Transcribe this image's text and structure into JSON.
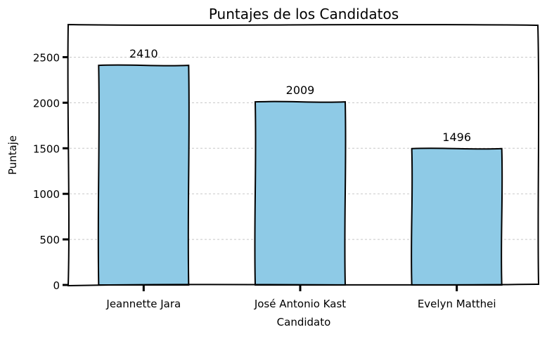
{
  "chart_data": {
    "type": "bar",
    "title": "Puntajes de los Candidatos",
    "xlabel": "Candidato",
    "ylabel": "Puntaje",
    "categories": [
      "Jeannette Jara",
      "José Antonio Kast",
      "Evelyn Matthei"
    ],
    "values": [
      2410,
      2009,
      1496
    ],
    "data_labels": [
      "2410",
      "2009",
      "1496"
    ],
    "yticks": [
      0,
      500,
      1000,
      1500,
      2000,
      2500
    ],
    "ylim": [
      0,
      2850
    ],
    "grid": "horizontal-dashed",
    "bar_color": "#8ecae6",
    "legend": "none"
  }
}
